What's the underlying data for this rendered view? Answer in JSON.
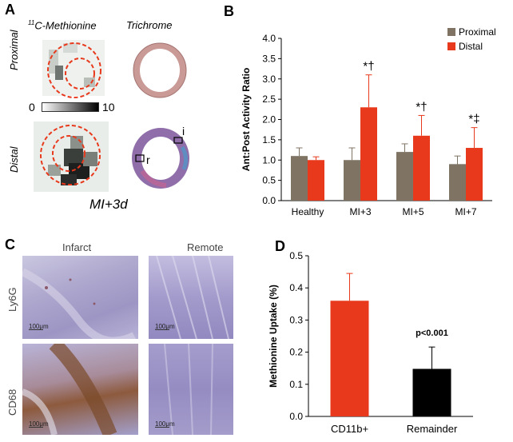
{
  "panels": {
    "a": {
      "letter": "A",
      "col_label_1": "11C-Methionine",
      "col_label_1_sup": "11",
      "col_label_1_rest": "C-Methionine",
      "col_label_2": "Trichrome",
      "row_label_1": "Proximal",
      "row_label_2": "Distal",
      "scale_min": "0",
      "scale_max": "10",
      "inset_i": "i",
      "inset_r": "r",
      "caption": "MI+3d"
    },
    "c": {
      "letter": "C",
      "col_label_1": "Infarct",
      "col_label_2": "Remote",
      "row_label_1": "Ly6G",
      "row_label_2": "CD68",
      "scale_bar_label": "100μm"
    }
  },
  "colors": {
    "proximal": "#7f7364",
    "distal": "#e8391c",
    "remainder": "#000000",
    "roi_dashed": "#e8391c"
  },
  "chart_data": [
    {
      "id": "B",
      "letter": "B",
      "type": "bar",
      "ylabel": "Ant:Post Activity Ratio",
      "ylim": [
        0,
        4
      ],
      "yticks": [
        "0.0",
        "0.5",
        "1.0",
        "1.5",
        "2.0",
        "2.5",
        "3.0",
        "3.5",
        "4.0"
      ],
      "categories": [
        "Healthy",
        "MI+3",
        "MI+5",
        "MI+7"
      ],
      "series": [
        {
          "name": "Proximal",
          "color": "#7f7364",
          "values": [
            1.1,
            1.0,
            1.2,
            0.9
          ],
          "errors": [
            0.2,
            0.3,
            0.2,
            0.2
          ]
        },
        {
          "name": "Distal",
          "color": "#e8391c",
          "values": [
            1.0,
            2.3,
            1.6,
            1.3
          ],
          "errors": [
            0.08,
            0.8,
            0.5,
            0.5
          ]
        }
      ],
      "annotations": [
        "",
        "*†",
        "*†",
        "*‡"
      ],
      "legend": "top-right"
    },
    {
      "id": "D",
      "letter": "D",
      "type": "bar",
      "ylabel": "Methionine Uptake (%)",
      "ylim": [
        0,
        0.5
      ],
      "yticks": [
        "0.0",
        "0.1",
        "0.2",
        "0.3",
        "0.4",
        "0.5"
      ],
      "categories": [
        "CD11b+",
        "Remainder"
      ],
      "values": [
        0.36,
        0.148
      ],
      "errors": [
        0.085,
        0.068
      ],
      "colors": [
        "#e8391c",
        "#000000"
      ],
      "annotation": "p<0.001"
    }
  ]
}
